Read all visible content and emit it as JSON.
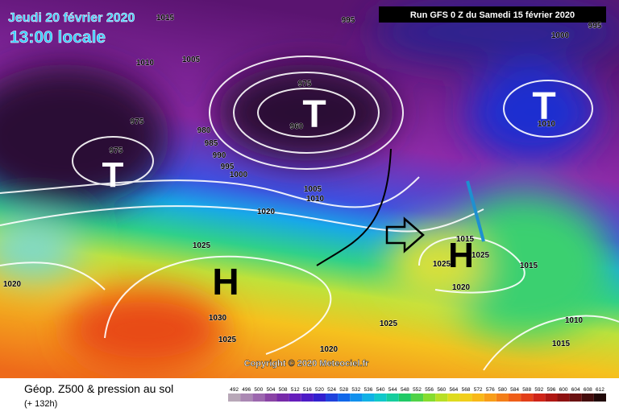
{
  "header": {
    "date": "Jeudi 20 février 2020",
    "time": "13:00 locale",
    "run": "Run GFS 0 Z du Samedi 15 février 2020"
  },
  "map": {
    "isobar_labels": [
      1015,
      995,
      1000,
      995,
      1010,
      1005,
      975,
      975,
      980,
      985,
      990,
      995,
      1000,
      975,
      960,
      1010,
      1005,
      1010,
      1020,
      1025,
      1020,
      1030,
      1025,
      1025,
      1020,
      1020,
      1015,
      1010,
      1015,
      1015,
      1025,
      1025
    ],
    "centers": [
      "T",
      "T",
      "T",
      "H",
      "H"
    ],
    "copyright": "Copyright © 2020 Meteociel.fr"
  },
  "legend": {
    "title": "Géop. Z500 & pression au sol",
    "lead_time": "(+ 132h)",
    "scale": [
      492,
      496,
      500,
      504,
      508,
      512,
      516,
      520,
      524,
      528,
      532,
      536,
      540,
      544,
      548,
      552,
      556,
      560,
      564,
      568,
      572,
      576,
      580,
      584,
      588,
      592,
      596,
      600,
      604,
      608,
      612
    ]
  }
}
